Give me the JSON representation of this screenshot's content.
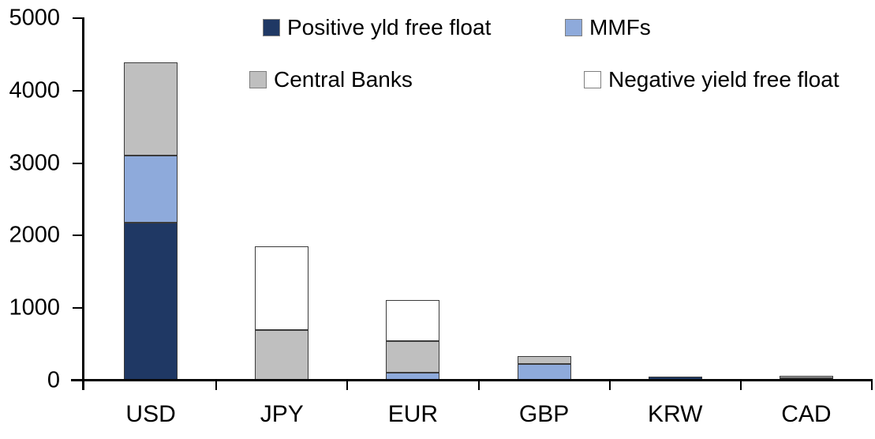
{
  "chart_data": {
    "type": "bar",
    "stacked": true,
    "title": "",
    "xlabel": "",
    "ylabel": "",
    "categories": [
      "USD",
      "JPY",
      "EUR",
      "GBP",
      "KRW",
      "CAD"
    ],
    "series": [
      {
        "name": "Positive yld free float",
        "color": "#1F3864",
        "values": [
          2175,
          0,
          0,
          0,
          50,
          30
        ]
      },
      {
        "name": "MMFs",
        "color": "#8EAADB",
        "values": [
          935,
          0,
          110,
          230,
          0,
          0
        ]
      },
      {
        "name": "Central Banks",
        "color": "#BFBFBF",
        "values": [
          1285,
          700,
          430,
          105,
          0,
          40
        ]
      },
      {
        "name": "Negative yield free float",
        "color": "#FFFFFF",
        "values": [
          0,
          1155,
          575,
          0,
          0,
          0
        ]
      }
    ],
    "totals": [
      4395,
      1855,
      1115,
      335,
      50,
      70
    ],
    "ylim": [
      0,
      5000
    ],
    "ytick_interval": 1000,
    "yticks": [
      "0",
      "1000",
      "2000",
      "3000",
      "4000",
      "5000"
    ],
    "grid": false,
    "legend_position": "top",
    "legend_columns": 2,
    "bar_border_color": "#3b3b3b",
    "axis_color": "#000000",
    "text_color": "#000000",
    "background_color": "#FFFFFF"
  }
}
